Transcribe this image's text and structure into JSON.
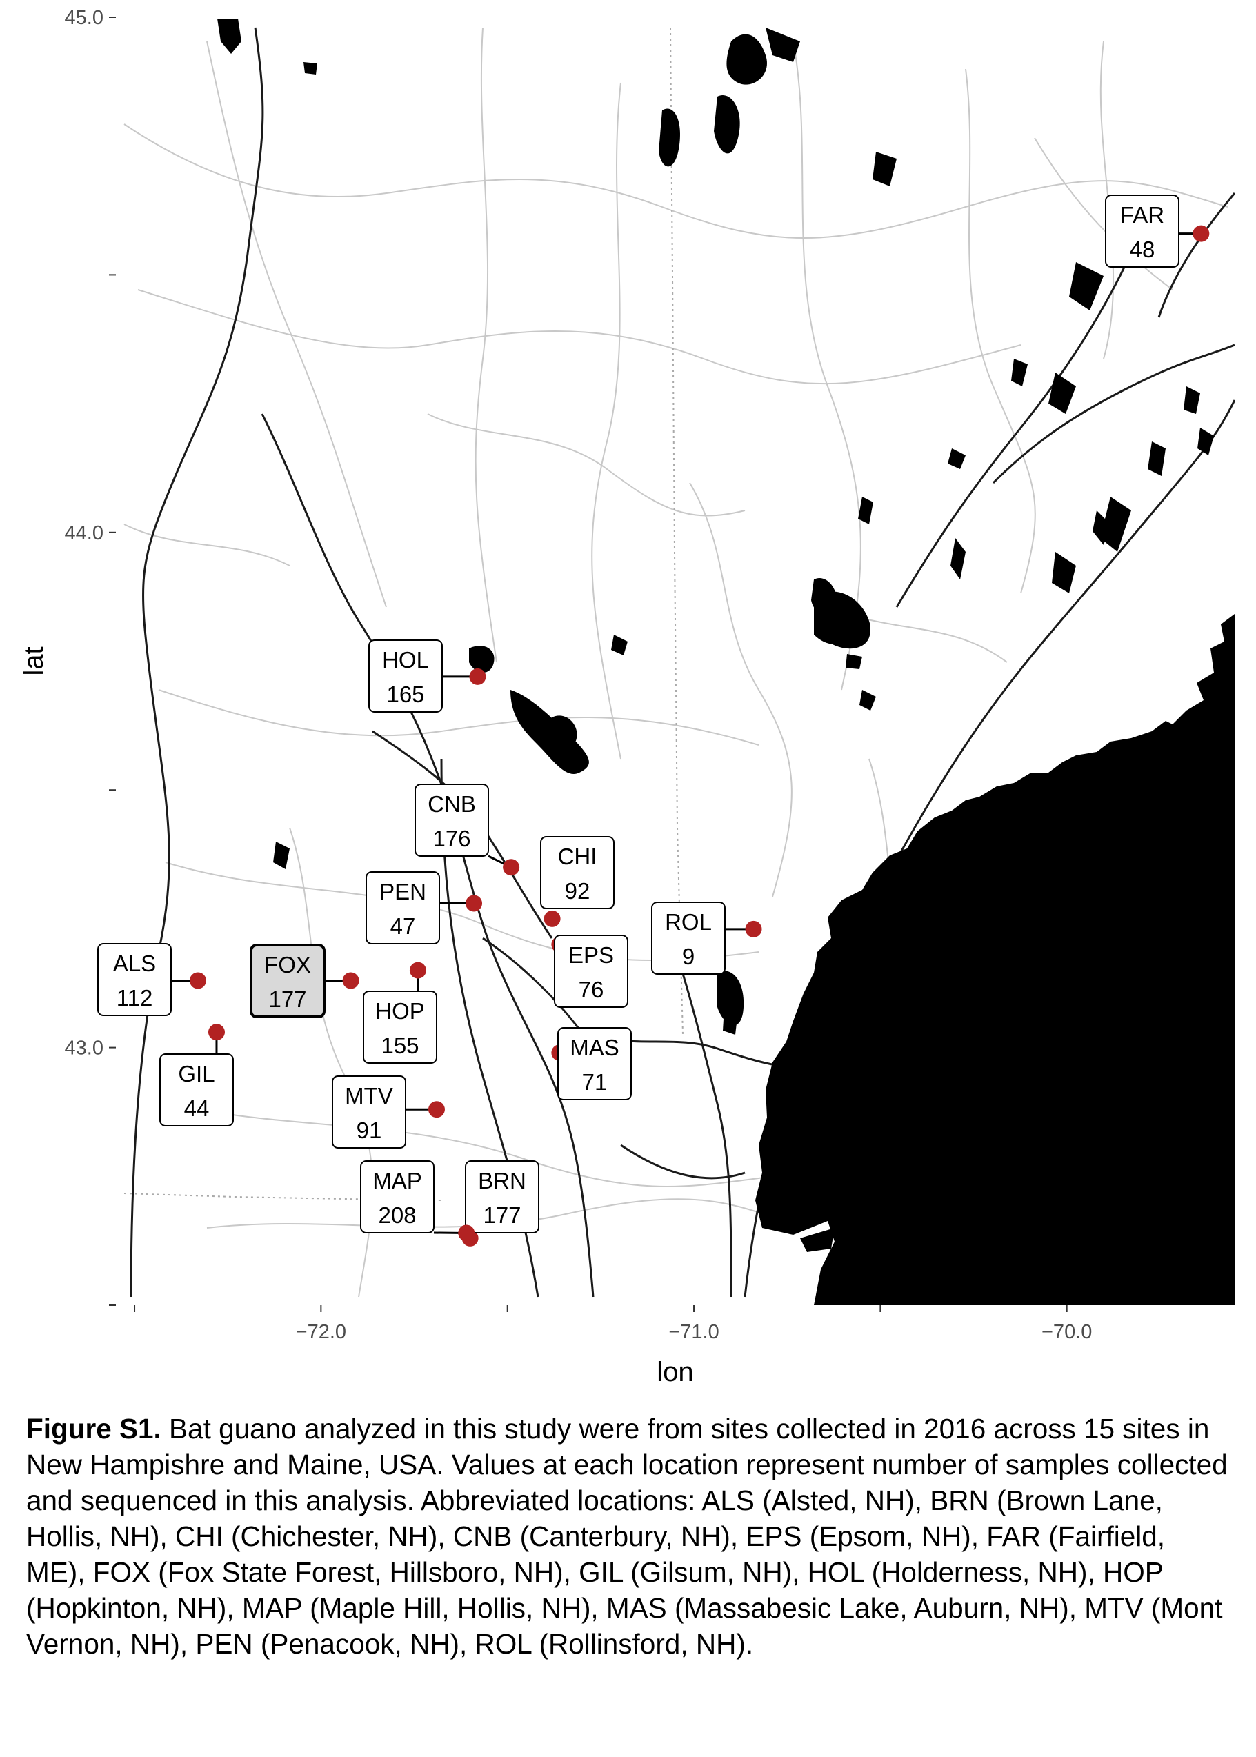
{
  "map": {
    "type": "map",
    "xlabel": "lon",
    "ylabel": "lat",
    "xlim": [
      -72.55,
      -69.55
    ],
    "ylim": [
      42.5,
      45.0
    ],
    "x_ticks": [
      {
        "value": -72.0,
        "label": "−72.0"
      },
      {
        "value": -71.0,
        "label": "−71.0"
      },
      {
        "value": -70.0,
        "label": "−70.0"
      }
    ],
    "x_minor_ticks": [
      -72.5,
      -71.5,
      -70.5
    ],
    "y_ticks": [
      {
        "value": 45.0,
        "label": "45.0"
      },
      {
        "value": 44.0,
        "label": "44.0"
      },
      {
        "value": 43.0,
        "label": "43.0"
      }
    ],
    "y_minor_ticks": [
      44.5,
      43.5,
      42.5
    ],
    "point_color": "#b22222",
    "highlight_fill": "#d9d9d9",
    "sites": [
      {
        "code": "ALS",
        "count": "112",
        "lon": -72.33,
        "lat": 43.13
      },
      {
        "code": "BRN",
        "count": "177",
        "lon": -71.6,
        "lat": 42.63
      },
      {
        "code": "CHI",
        "count": "92",
        "lon": -71.38,
        "lat": 43.25
      },
      {
        "code": "CNB",
        "count": "176",
        "lon": -71.49,
        "lat": 43.35
      },
      {
        "code": "EPS",
        "count": "76",
        "lon": -71.36,
        "lat": 43.2
      },
      {
        "code": "FAR",
        "count": "48",
        "lon": -69.64,
        "lat": 44.58
      },
      {
        "code": "FOX",
        "count": "177",
        "lon": -71.92,
        "lat": 43.13,
        "highlight": true
      },
      {
        "code": "GIL",
        "count": "44",
        "lon": -72.28,
        "lat": 43.03
      },
      {
        "code": "HOL",
        "count": "165",
        "lon": -71.58,
        "lat": 43.72
      },
      {
        "code": "HOP",
        "count": "155",
        "lon": -71.74,
        "lat": 43.15
      },
      {
        "code": "MAP",
        "count": "208",
        "lon": -71.61,
        "lat": 42.64
      },
      {
        "code": "MAS",
        "count": "71",
        "lon": -71.36,
        "lat": 42.99
      },
      {
        "code": "MTV",
        "count": "91",
        "lon": -71.69,
        "lat": 42.88
      },
      {
        "code": "PEN",
        "count": "47",
        "lon": -71.59,
        "lat": 43.28
      },
      {
        "code": "ROL",
        "count": "9",
        "lon": -70.84,
        "lat": 43.23
      }
    ]
  },
  "caption": {
    "label": "Figure S1.",
    "text": " Bat guano analyzed in this study were from sites collected in 2016 across 15 sites in New Hampishre and Maine, USA. Values at each location represent number of samples collected and sequenced in this analysis. Abbreviated locations: ALS (Alsted, NH), BRN (Brown Lane, Hollis, NH), CHI (Chichester, NH), CNB (Canterbury, NH), EPS (Epsom, NH), FAR (Fairfield, ME), FOX (Fox State Forest, Hillsboro, NH), GIL (Gilsum, NH), HOL (Holderness, NH), HOP (Hopkinton, NH), MAP (Maple Hill, Hollis, NH), MAS (Massabesic Lake, Auburn, NH), MTV (Mont Vernon, NH), PEN (Penacook, NH), ROL (Rollinsford, NH)."
  }
}
